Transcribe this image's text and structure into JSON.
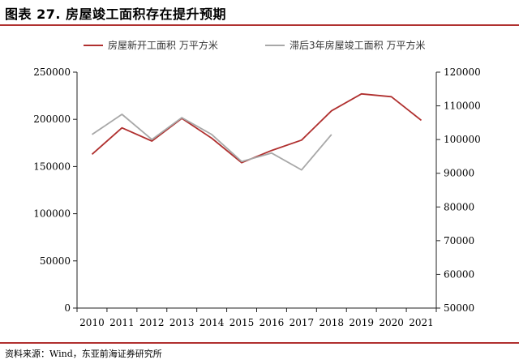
{
  "header": {
    "title": "图表 27. 房屋竣工面积存在提升预期"
  },
  "footer": {
    "source": "资料来源：Wind，东亚前海证券研究所"
  },
  "colors": {
    "accent": "#b0302f",
    "series1": "#b0302f",
    "series2": "#a8a8a8",
    "axis": "#222222"
  },
  "chart_data": {
    "type": "line",
    "title": "",
    "x": [
      "2010",
      "2011",
      "2012",
      "2013",
      "2014",
      "2015",
      "2016",
      "2017",
      "2018",
      "2019",
      "2020",
      "2021"
    ],
    "y_left": {
      "ylim": [
        0,
        250000
      ],
      "ticks": [
        0,
        50000,
        100000,
        150000,
        200000,
        250000
      ]
    },
    "y_right": {
      "ylim": [
        50000,
        120000
      ],
      "ticks": [
        50000,
        60000,
        70000,
        80000,
        90000,
        100000,
        110000,
        120000
      ]
    },
    "legend_position": "top",
    "grid": false,
    "series": [
      {
        "name": "房屋新开工面积 万平方米",
        "axis": "left",
        "values": [
          163000,
          191000,
          177000,
          201000,
          180000,
          154000,
          167000,
          178000,
          209000,
          227000,
          224000,
          199000
        ]
      },
      {
        "name": "滞后3年房屋竣工面积 万平方米",
        "axis": "right",
        "values": [
          101500,
          107500,
          100000,
          106500,
          101500,
          93500,
          96000,
          91000,
          101500,
          null,
          null,
          null
        ]
      }
    ]
  }
}
